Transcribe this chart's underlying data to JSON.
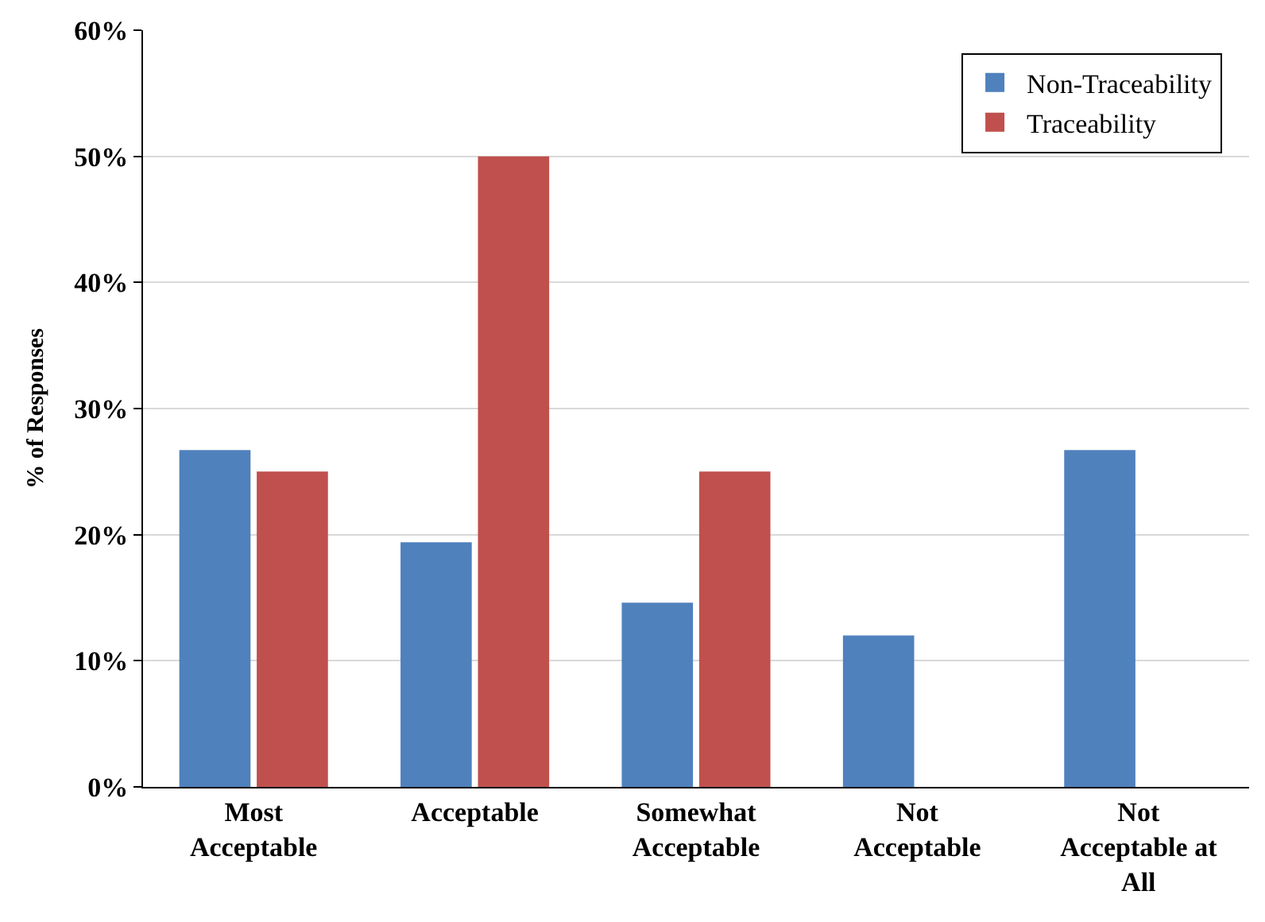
{
  "chart_data": {
    "type": "bar",
    "ylabel": "% of Responses",
    "categories": [
      "Most Acceptable",
      "Acceptable",
      "Somewhat Acceptable",
      "Not Acceptable",
      "Not Acceptable at All"
    ],
    "series": [
      {
        "name": "Non-Traceability",
        "color": "#4f81bd",
        "values": [
          26.7,
          19.4,
          14.6,
          12.0,
          26.7
        ]
      },
      {
        "name": "Traceability",
        "color": "#c0504d",
        "values": [
          25.0,
          50.0,
          25.0,
          0,
          0
        ]
      }
    ],
    "ylim": [
      0,
      60
    ],
    "yticks": [
      {
        "value": 0,
        "label": "0%"
      },
      {
        "value": 10,
        "label": "10%"
      },
      {
        "value": 20,
        "label": "20%"
      },
      {
        "value": 30,
        "label": "30%"
      },
      {
        "value": 40,
        "label": "40%"
      },
      {
        "value": 50,
        "label": "50%"
      },
      {
        "value": 60,
        "label": "60%"
      }
    ],
    "grid": "y",
    "legend": "top right"
  }
}
